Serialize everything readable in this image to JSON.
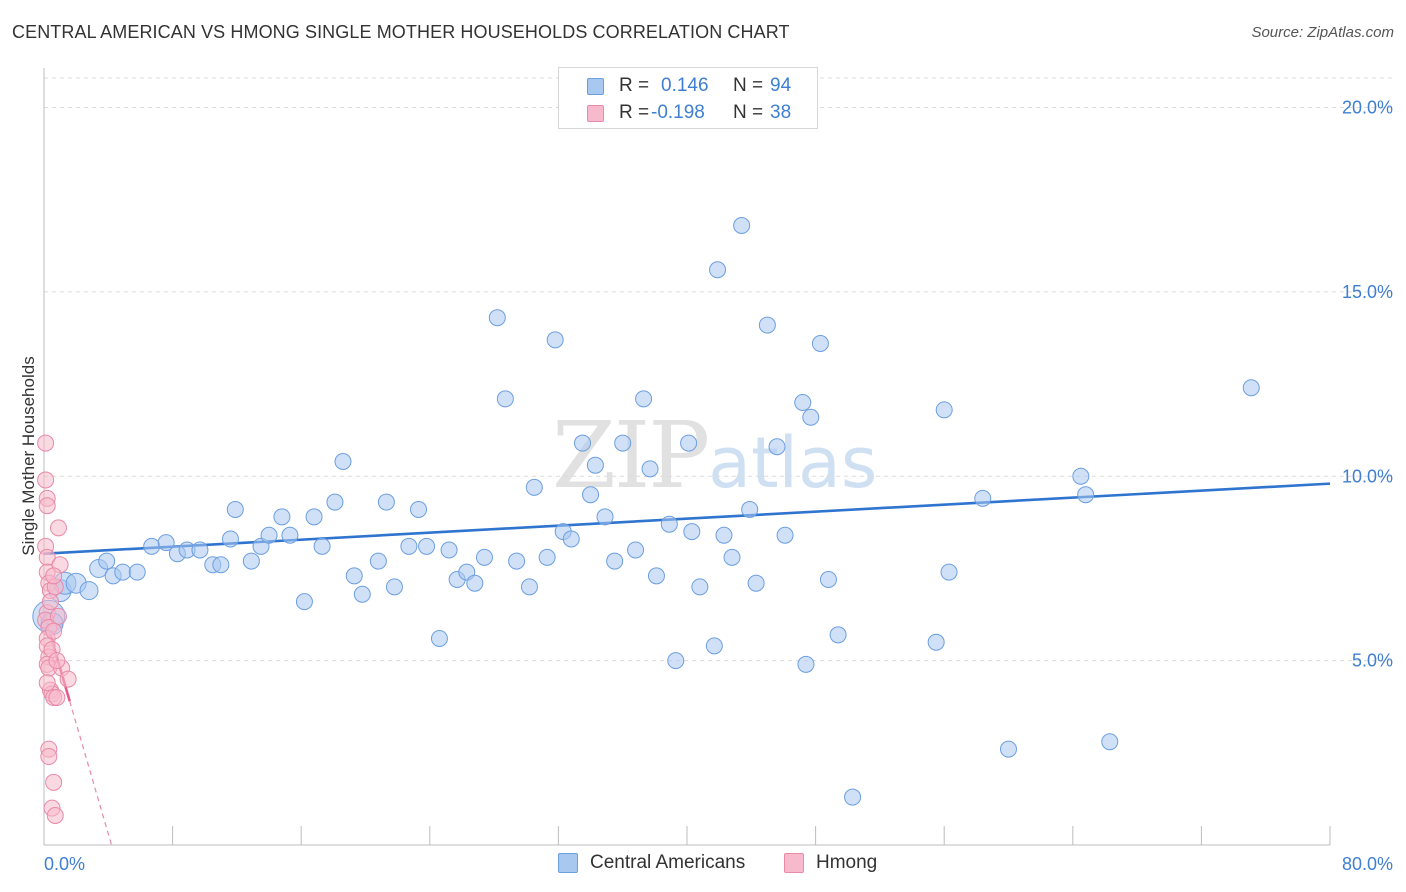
{
  "header": {
    "title": "CENTRAL AMERICAN VS HMONG SINGLE MOTHER HOUSEHOLDS CORRELATION CHART",
    "source": "Source: ZipAtlas.com"
  },
  "watermark": {
    "zip": "ZIP",
    "atlas": "atlas"
  },
  "legend": {
    "rows": [
      {
        "r_label": "R =",
        "r_value": "0.146",
        "n_label": "N =",
        "n_value": "94",
        "color": "#a9c8f0",
        "border": "#6d9fe0"
      },
      {
        "r_label": "R =",
        "r_value": "-0.198",
        "n_label": "N =",
        "n_value": "38",
        "color": "#f7b9cc",
        "border": "#e88aa8"
      }
    ]
  },
  "bottom_legend": [
    {
      "label": "Central Americans",
      "color": "#a9c8f0",
      "border": "#6d9fe0"
    },
    {
      "label": "Hmong",
      "color": "#f7b9cc",
      "border": "#e88aa8"
    }
  ],
  "chart_data": {
    "type": "scatter",
    "title": "CENTRAL AMERICAN VS HMONG SINGLE MOTHER HOUSEHOLDS CORRELATION CHART",
    "xlabel": "",
    "ylabel": "Single Mother Households",
    "xlim": [
      0,
      80
    ],
    "ylim": [
      0,
      20.8
    ],
    "x_tick_labels": [
      "0.0%",
      "80.0%"
    ],
    "y_ticks": [
      5,
      10,
      15,
      20
    ],
    "y_tick_labels": [
      "5.0%",
      "10.0%",
      "15.0%",
      "20.0%"
    ],
    "grid": true,
    "legend_position": "top-center",
    "series": [
      {
        "name": "Central Americans",
        "color": "#a9c8f0",
        "stroke": "#6d9fe0",
        "trend": {
          "x0": 0,
          "y0": 7.9,
          "x1": 80,
          "y1": 9.8,
          "color": "#2f74cf"
        },
        "points": [
          [
            0.3,
            6.2,
            16
          ],
          [
            0.5,
            6.0,
            11
          ],
          [
            1.0,
            6.9,
            11
          ],
          [
            1.3,
            7.1,
            11
          ],
          [
            2.0,
            7.1,
            10
          ],
          [
            2.8,
            6.9,
            9
          ],
          [
            3.4,
            7.5,
            9
          ],
          [
            3.9,
            7.7,
            8
          ],
          [
            4.3,
            7.3,
            8
          ],
          [
            4.9,
            7.4,
            8
          ],
          [
            5.8,
            7.4,
            8
          ],
          [
            6.7,
            8.1,
            8
          ],
          [
            7.6,
            8.2,
            8
          ],
          [
            8.3,
            7.9,
            8
          ],
          [
            8.9,
            8.0,
            8
          ],
          [
            9.7,
            8.0,
            8
          ],
          [
            10.5,
            7.6,
            8
          ],
          [
            11.0,
            7.6,
            8
          ],
          [
            11.6,
            8.3,
            8
          ],
          [
            11.9,
            9.1,
            8
          ],
          [
            12.9,
            7.7,
            8
          ],
          [
            13.5,
            8.1,
            8
          ],
          [
            14.0,
            8.4,
            8
          ],
          [
            14.8,
            8.9,
            8
          ],
          [
            15.3,
            8.4,
            8
          ],
          [
            16.2,
            6.6,
            8
          ],
          [
            16.8,
            8.9,
            8
          ],
          [
            17.3,
            8.1,
            8
          ],
          [
            18.1,
            9.3,
            8
          ],
          [
            18.6,
            10.4,
            8
          ],
          [
            19.3,
            7.3,
            8
          ],
          [
            19.8,
            6.8,
            8
          ],
          [
            20.8,
            7.7,
            8
          ],
          [
            21.3,
            9.3,
            8
          ],
          [
            21.8,
            7.0,
            8
          ],
          [
            22.7,
            8.1,
            8
          ],
          [
            23.3,
            9.1,
            8
          ],
          [
            23.8,
            8.1,
            8
          ],
          [
            24.6,
            5.6,
            8
          ],
          [
            25.2,
            8.0,
            8
          ],
          [
            25.7,
            7.2,
            8
          ],
          [
            26.3,
            7.4,
            8
          ],
          [
            26.8,
            7.1,
            8
          ],
          [
            27.4,
            7.8,
            8
          ],
          [
            28.2,
            14.3,
            8
          ],
          [
            28.7,
            12.1,
            8
          ],
          [
            29.4,
            7.7,
            8
          ],
          [
            30.2,
            7.0,
            8
          ],
          [
            30.5,
            9.7,
            8
          ],
          [
            31.3,
            7.8,
            8
          ],
          [
            31.8,
            13.7,
            8
          ],
          [
            32.3,
            8.5,
            8
          ],
          [
            32.8,
            8.3,
            8
          ],
          [
            33.5,
            10.9,
            8
          ],
          [
            34.0,
            9.5,
            8
          ],
          [
            34.3,
            10.3,
            8
          ],
          [
            34.9,
            8.9,
            8
          ],
          [
            35.5,
            7.7,
            8
          ],
          [
            36.0,
            10.9,
            8
          ],
          [
            36.8,
            8.0,
            8
          ],
          [
            37.3,
            12.1,
            8
          ],
          [
            37.7,
            10.2,
            8
          ],
          [
            38.1,
            7.3,
            8
          ],
          [
            38.9,
            8.7,
            8
          ],
          [
            39.3,
            5.0,
            8
          ],
          [
            40.1,
            10.9,
            8
          ],
          [
            40.3,
            8.5,
            8
          ],
          [
            40.8,
            7.0,
            8
          ],
          [
            41.7,
            5.4,
            8
          ],
          [
            41.9,
            15.6,
            8
          ],
          [
            42.3,
            8.4,
            8
          ],
          [
            42.8,
            7.8,
            8
          ],
          [
            43.4,
            16.8,
            8
          ],
          [
            43.9,
            9.1,
            8
          ],
          [
            44.3,
            7.1,
            8
          ],
          [
            45.0,
            14.1,
            8
          ],
          [
            45.6,
            10.8,
            8
          ],
          [
            46.1,
            8.4,
            8
          ],
          [
            47.2,
            12.0,
            8
          ],
          [
            47.4,
            4.9,
            8
          ],
          [
            47.7,
            11.6,
            8
          ],
          [
            48.3,
            13.6,
            8
          ],
          [
            48.8,
            7.2,
            8
          ],
          [
            49.4,
            5.7,
            8
          ],
          [
            50.3,
            1.3,
            8
          ],
          [
            55.5,
            5.5,
            8
          ],
          [
            56.0,
            11.8,
            8
          ],
          [
            56.3,
            7.4,
            8
          ],
          [
            58.4,
            9.4,
            8
          ],
          [
            60.0,
            2.6,
            8
          ],
          [
            64.5,
            10.0,
            8
          ],
          [
            64.8,
            9.5,
            8
          ],
          [
            66.3,
            2.8,
            8
          ],
          [
            75.1,
            12.4,
            8
          ]
        ]
      },
      {
        "name": "Hmong",
        "color": "#f7b9cc",
        "stroke": "#e88aa8",
        "trend": {
          "x0": 0,
          "y0": 6.3,
          "x1": 1.6,
          "y1": 3.9,
          "color": "#e35c8b"
        },
        "trend_ext": {
          "x0": 1.6,
          "y0": 3.9,
          "x1": 4.2,
          "y1": 0,
          "color": "#e88aa8"
        },
        "points": [
          [
            0.1,
            10.9,
            8
          ],
          [
            0.1,
            9.9,
            8
          ],
          [
            0.2,
            9.4,
            8
          ],
          [
            0.2,
            9.2,
            8
          ],
          [
            0.1,
            8.1,
            8
          ],
          [
            0.2,
            7.8,
            8
          ],
          [
            0.2,
            7.4,
            8
          ],
          [
            0.3,
            7.1,
            8
          ],
          [
            0.4,
            6.9,
            8
          ],
          [
            0.2,
            6.3,
            8
          ],
          [
            0.1,
            6.1,
            8
          ],
          [
            0.3,
            5.9,
            8
          ],
          [
            0.2,
            5.6,
            8
          ],
          [
            0.2,
            5.4,
            8
          ],
          [
            0.3,
            5.1,
            8
          ],
          [
            0.2,
            4.9,
            8
          ],
          [
            0.3,
            4.8,
            8
          ],
          [
            0.4,
            4.2,
            8
          ],
          [
            0.5,
            4.1,
            8
          ],
          [
            0.6,
            4.0,
            8
          ],
          [
            0.3,
            2.6,
            8
          ],
          [
            0.3,
            2.4,
            8
          ],
          [
            0.6,
            1.7,
            8
          ],
          [
            0.5,
            1.0,
            8
          ],
          [
            0.7,
            0.8,
            8
          ],
          [
            0.9,
            8.6,
            8
          ],
          [
            1.0,
            7.6,
            8
          ],
          [
            1.1,
            4.8,
            8
          ],
          [
            1.5,
            4.5,
            8
          ],
          [
            0.9,
            6.2,
            8
          ],
          [
            0.7,
            7.0,
            8
          ],
          [
            0.6,
            5.8,
            8
          ],
          [
            0.8,
            4.0,
            8
          ],
          [
            0.4,
            6.6,
            8
          ],
          [
            0.5,
            5.3,
            8
          ],
          [
            0.8,
            5.0,
            8
          ],
          [
            0.2,
            4.4,
            8
          ],
          [
            0.6,
            7.3,
            8
          ]
        ]
      }
    ]
  }
}
